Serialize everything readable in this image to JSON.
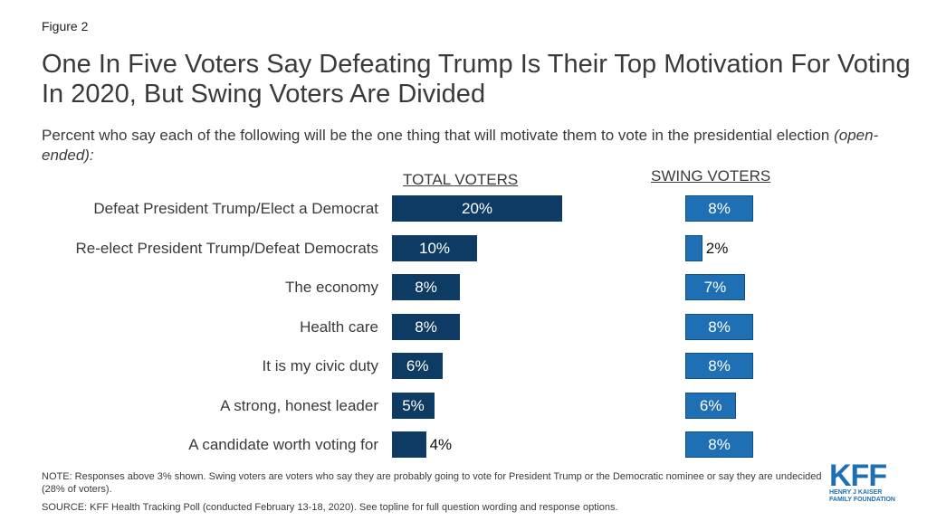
{
  "figure_label": "Figure 2",
  "chart_data": {
    "type": "bar",
    "title": "One In Five Voters Say Defeating Trump Is Their Top Motivation For Voting In 2020, But Swing Voters Are Divided",
    "subtitle": "Percent who say each of the following will be the one thing that will motivate them to vote in the presidential election",
    "subtitle_italic": "(open-ended):",
    "categories": [
      "Defeat President Trump/Elect a Democrat",
      "Re-elect President Trump/Defeat Democrats",
      "The economy",
      "Health care",
      "It is my civic duty",
      "A strong, honest leader",
      "A candidate worth voting for"
    ],
    "series": [
      {
        "name": "TOTAL VOTERS",
        "values": [
          20,
          10,
          8,
          8,
          6,
          5,
          4
        ],
        "labels": [
          "20%",
          "10%",
          "8%",
          "8%",
          "6%",
          "5%",
          "4%"
        ],
        "color": "#0d3b63"
      },
      {
        "name": "SWING VOTERS",
        "values": [
          8,
          2,
          7,
          8,
          8,
          6,
          8
        ],
        "labels": [
          "8%",
          "2%",
          "7%",
          "8%",
          "8%",
          "6%",
          "8%"
        ],
        "color": "#1f6fb5"
      }
    ],
    "orientation": "horizontal",
    "grid": false
  },
  "note": "NOTE: Responses above 3% shown. Swing voters are voters who say they are probably going to vote for President Trump or the Democratic nominee or say they are undecided (28% of voters).",
  "source": "SOURCE: KFF Health Tracking Poll (conducted February 13-18, 2020). See topline for full question wording and response options.",
  "logo": {
    "text": "KFF",
    "sub": "HENRY J KAISER FAMILY FOUNDATION",
    "color": "#1f6fb5"
  }
}
